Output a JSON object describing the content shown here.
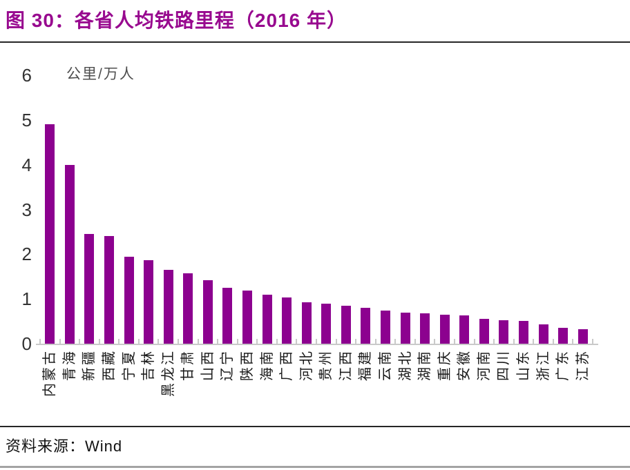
{
  "page": {
    "title": "图 30：各省人均铁路里程（2016 年）",
    "source_label": "资料来源：",
    "source_name": "Wind"
  },
  "chart_data": {
    "type": "bar",
    "title": "各省人均铁路里程（2016 年）",
    "unit_label": "公里/万人",
    "ylabel": "公里/万人",
    "xlabel": "",
    "ylim": [
      0,
      6
    ],
    "yticks": [
      0,
      1,
      2,
      3,
      4,
      5,
      6
    ],
    "grid": false,
    "legend": false,
    "bar_color": "#8c018f",
    "title_color": "#98098f",
    "categories": [
      "内蒙古",
      "青海",
      "新疆",
      "西藏",
      "宁夏",
      "吉林",
      "黑龙江",
      "甘肃",
      "山西",
      "辽宁",
      "陕西",
      "海南",
      "广西",
      "河北",
      "贵州",
      "江西",
      "福建",
      "云南",
      "湖北",
      "湖南",
      "重庆",
      "安徽",
      "河南",
      "四川",
      "山东",
      "浙江",
      "广东",
      "江苏"
    ],
    "values": [
      4.9,
      4.0,
      2.45,
      2.4,
      1.95,
      1.87,
      1.65,
      1.57,
      1.42,
      1.25,
      1.19,
      1.1,
      1.04,
      0.92,
      0.89,
      0.85,
      0.8,
      0.74,
      0.7,
      0.68,
      0.65,
      0.63,
      0.56,
      0.53,
      0.51,
      0.43,
      0.36,
      0.33
    ]
  }
}
